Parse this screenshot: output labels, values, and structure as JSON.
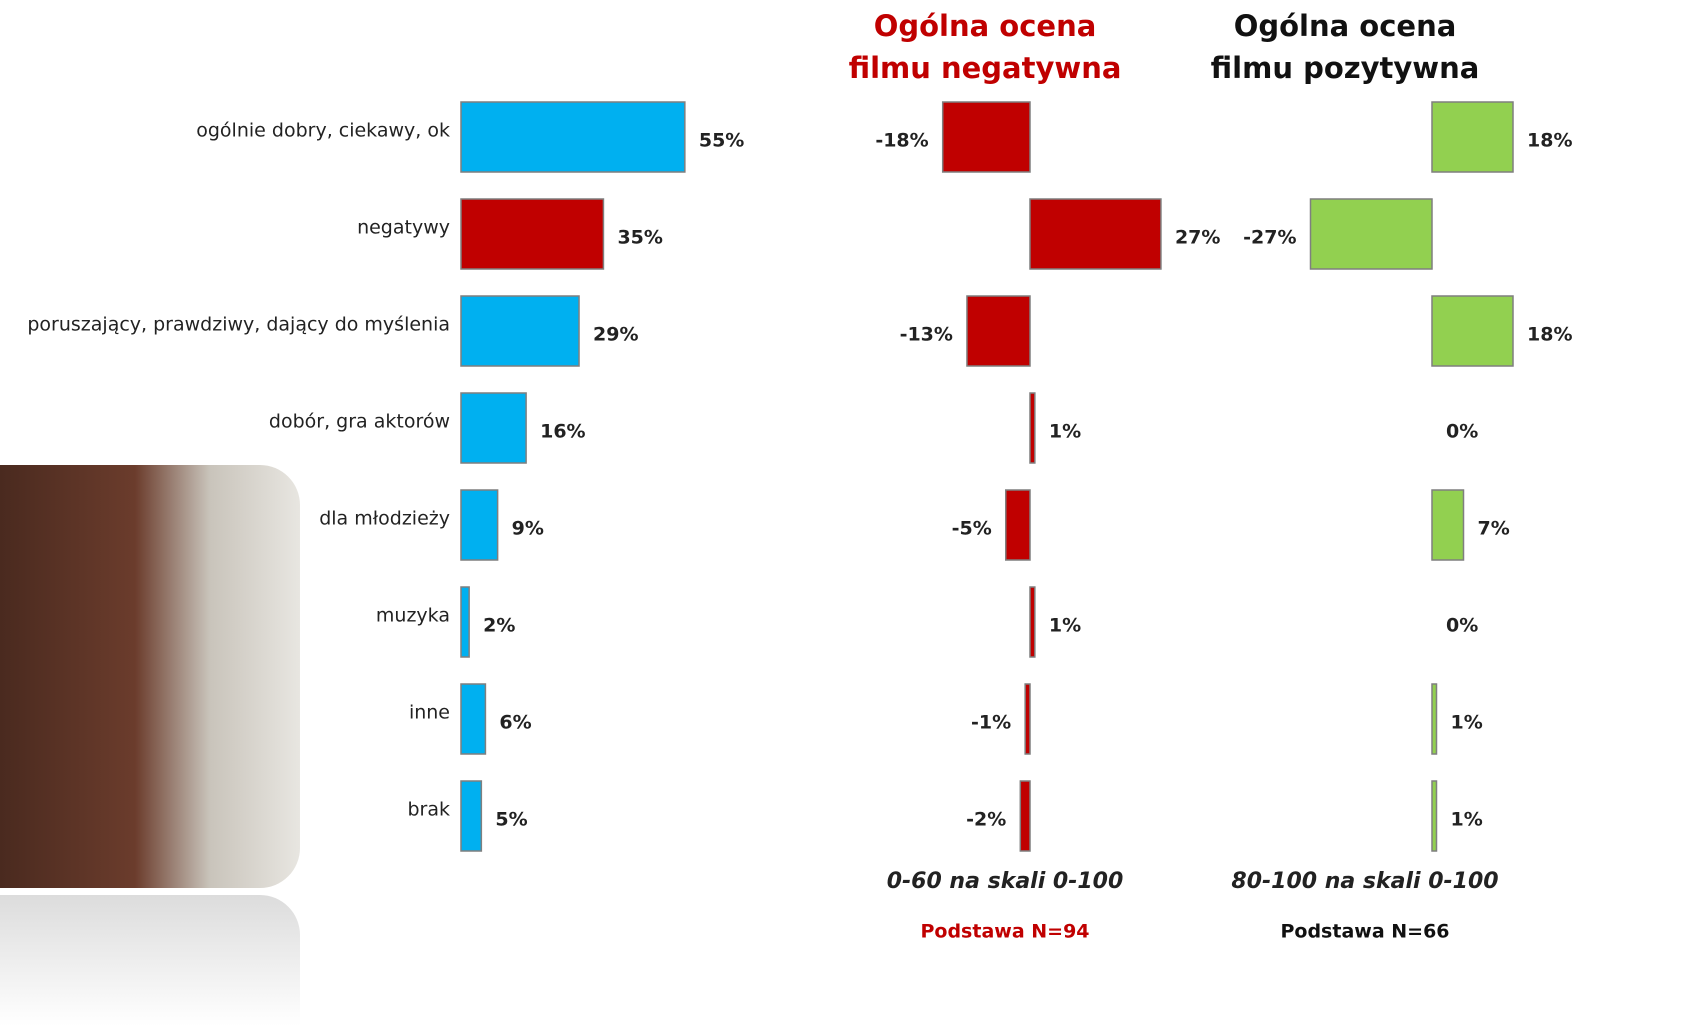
{
  "chart_data": [
    {
      "type": "barh",
      "categories": [
        "ogólnie dobry, ciekawy, ok",
        "negatywy",
        "poruszający, prawdziwy, dający do myślenia",
        "dobór, gra aktorów",
        "dla młodzieży",
        "muzyka",
        "inne",
        "brak"
      ],
      "values": [
        55,
        35,
        29,
        16,
        9,
        2,
        6,
        5
      ],
      "value_labels": [
        "55%",
        "35%",
        "29%",
        "16%",
        "9%",
        "2%",
        "6%",
        "5%"
      ],
      "colors": [
        "#00b0f0",
        "#c00000",
        "#00b0f0",
        "#00b0f0",
        "#00b0f0",
        "#00b0f0",
        "#00b0f0",
        "#00b0f0"
      ]
    },
    {
      "type": "barh",
      "title": "Ogólna ocena filmu negatywna",
      "values": [
        -18,
        27,
        -13,
        1,
        -5,
        1,
        -1,
        -2
      ],
      "value_labels": [
        "-18%",
        "27%",
        "-13%",
        "1%",
        "-5%",
        "1%",
        "-1%",
        "-2%"
      ],
      "color": "#c00000",
      "subtitle": "0-60 na skali 0-100",
      "note": "Podstawa N=94"
    },
    {
      "type": "barh",
      "title": "Ogólna ocena filmu pozytywna",
      "values": [
        18,
        -27,
        18,
        0,
        7,
        0,
        1,
        1
      ],
      "value_labels": [
        "18%",
        "-27%",
        "18%",
        "0%",
        "7%",
        "0%",
        "1%",
        "1%"
      ],
      "color": "#92d050",
      "subtitle": "80-100 na skali 0-100",
      "note": "Podstawa N=66"
    }
  ]
}
